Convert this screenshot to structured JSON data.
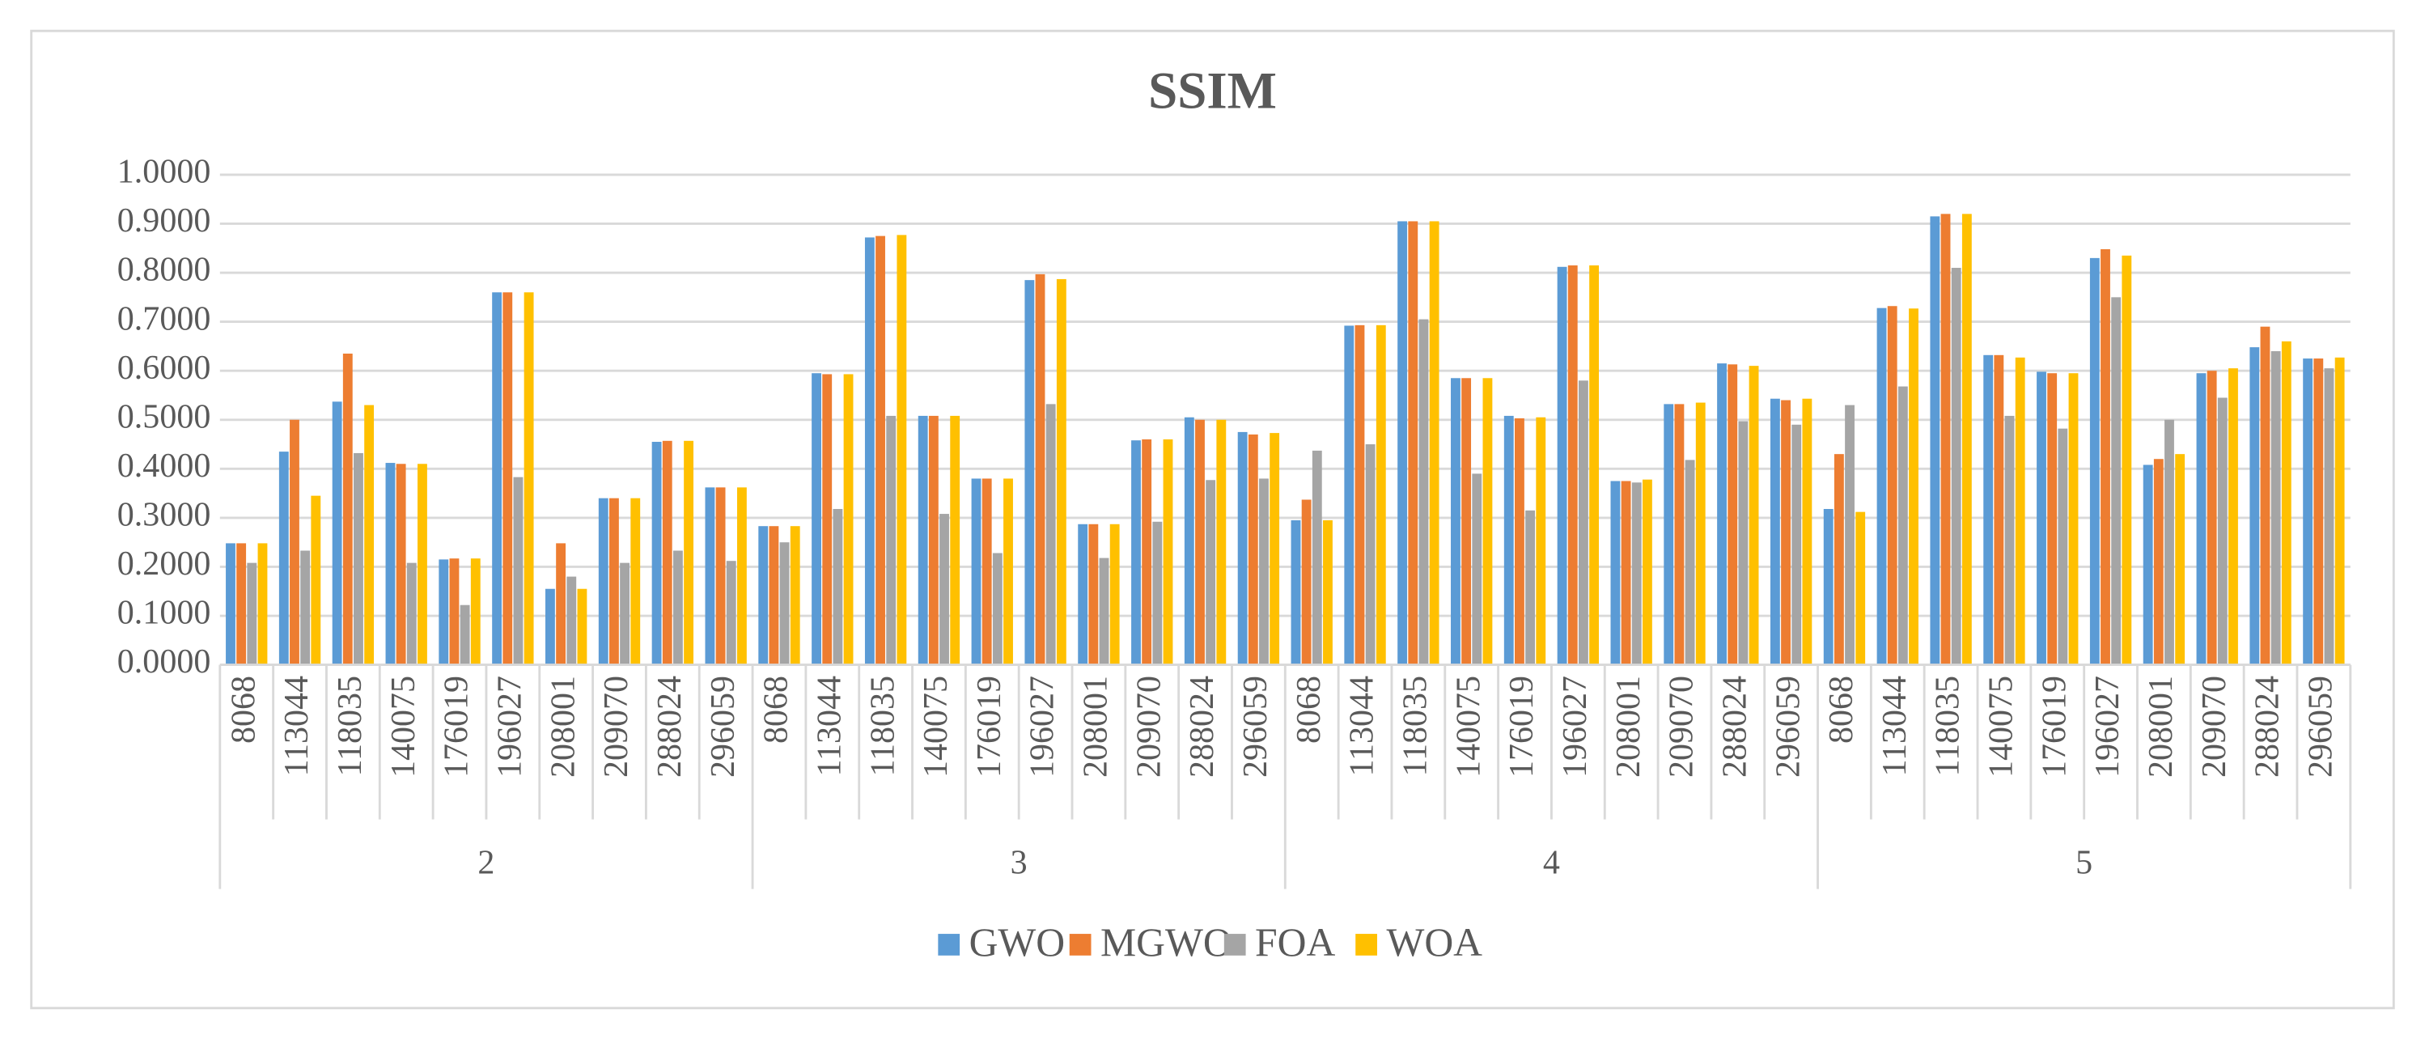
{
  "chart_data": {
    "type": "bar",
    "title": "SSIM",
    "groups": [
      "2",
      "3",
      "4",
      "5"
    ],
    "categories": [
      "8068",
      "113044",
      "118035",
      "140075",
      "176019",
      "196027",
      "208001",
      "209070",
      "288024",
      "296059",
      "8068",
      "113044",
      "118035",
      "140075",
      "176019",
      "196027",
      "208001",
      "209070",
      "288024",
      "296059",
      "8068",
      "113044",
      "118035",
      "140075",
      "176019",
      "196027",
      "208001",
      "209070",
      "288024",
      "296059",
      "8068",
      "113044",
      "118035",
      "140075",
      "176019",
      "196027",
      "208001",
      "209070",
      "288024",
      "296059"
    ],
    "series": [
      {
        "name": "GWO",
        "color": "#5b9bd5",
        "values": [
          0.248,
          0.435,
          0.537,
          0.412,
          0.215,
          0.76,
          0.155,
          0.34,
          0.455,
          0.362,
          0.283,
          0.595,
          0.872,
          0.508,
          0.38,
          0.785,
          0.287,
          0.458,
          0.505,
          0.475,
          0.295,
          0.692,
          0.905,
          0.585,
          0.508,
          0.812,
          0.375,
          0.532,
          0.615,
          0.543,
          0.318,
          0.728,
          0.915,
          0.632,
          0.598,
          0.83,
          0.408,
          0.595,
          0.648,
          0.625
        ]
      },
      {
        "name": "MGWO",
        "color": "#ed7d31",
        "values": [
          0.248,
          0.5,
          0.635,
          0.41,
          0.217,
          0.76,
          0.248,
          0.34,
          0.457,
          0.362,
          0.283,
          0.593,
          0.875,
          0.508,
          0.38,
          0.797,
          0.287,
          0.46,
          0.5,
          0.47,
          0.337,
          0.693,
          0.905,
          0.585,
          0.503,
          0.815,
          0.375,
          0.532,
          0.613,
          0.54,
          0.43,
          0.732,
          0.92,
          0.632,
          0.595,
          0.848,
          0.42,
          0.6,
          0.69,
          0.625
        ]
      },
      {
        "name": "FOA",
        "color": "#a5a5a5",
        "values": [
          0.208,
          0.233,
          0.432,
          0.208,
          0.122,
          0.383,
          0.18,
          0.208,
          0.233,
          0.212,
          0.25,
          0.318,
          0.508,
          0.308,
          0.228,
          0.532,
          0.218,
          0.292,
          0.377,
          0.38,
          0.437,
          0.45,
          0.705,
          0.39,
          0.315,
          0.58,
          0.372,
          0.418,
          0.497,
          0.49,
          0.53,
          0.568,
          0.81,
          0.508,
          0.482,
          0.75,
          0.5,
          0.545,
          0.64,
          0.605
        ]
      },
      {
        "name": "WOA",
        "color": "#ffc000",
        "values": [
          0.248,
          0.345,
          0.53,
          0.41,
          0.217,
          0.76,
          0.155,
          0.34,
          0.457,
          0.362,
          0.283,
          0.593,
          0.877,
          0.508,
          0.38,
          0.787,
          0.287,
          0.46,
          0.5,
          0.473,
          0.295,
          0.693,
          0.905,
          0.585,
          0.505,
          0.815,
          0.378,
          0.535,
          0.61,
          0.543,
          0.312,
          0.727,
          0.92,
          0.627,
          0.595,
          0.835,
          0.43,
          0.605,
          0.66,
          0.627
        ]
      }
    ],
    "ylim": [
      0,
      1
    ],
    "yticks": [
      {
        "value": 0,
        "label": "0.0000"
      },
      {
        "value": 0.1,
        "label": "0.1000"
      },
      {
        "value": 0.2,
        "label": "0.2000"
      },
      {
        "value": 0.3,
        "label": "0.3000"
      },
      {
        "value": 0.4,
        "label": "0.4000"
      },
      {
        "value": 0.5,
        "label": "0.5000"
      },
      {
        "value": 0.6,
        "label": "0.6000"
      },
      {
        "value": 0.7,
        "label": "0.7000"
      },
      {
        "value": 0.8,
        "label": "0.8000"
      },
      {
        "value": 0.9,
        "label": "0.9000"
      },
      {
        "value": 1,
        "label": "1.0000"
      }
    ],
    "grid": true,
    "legend": "bottom"
  }
}
